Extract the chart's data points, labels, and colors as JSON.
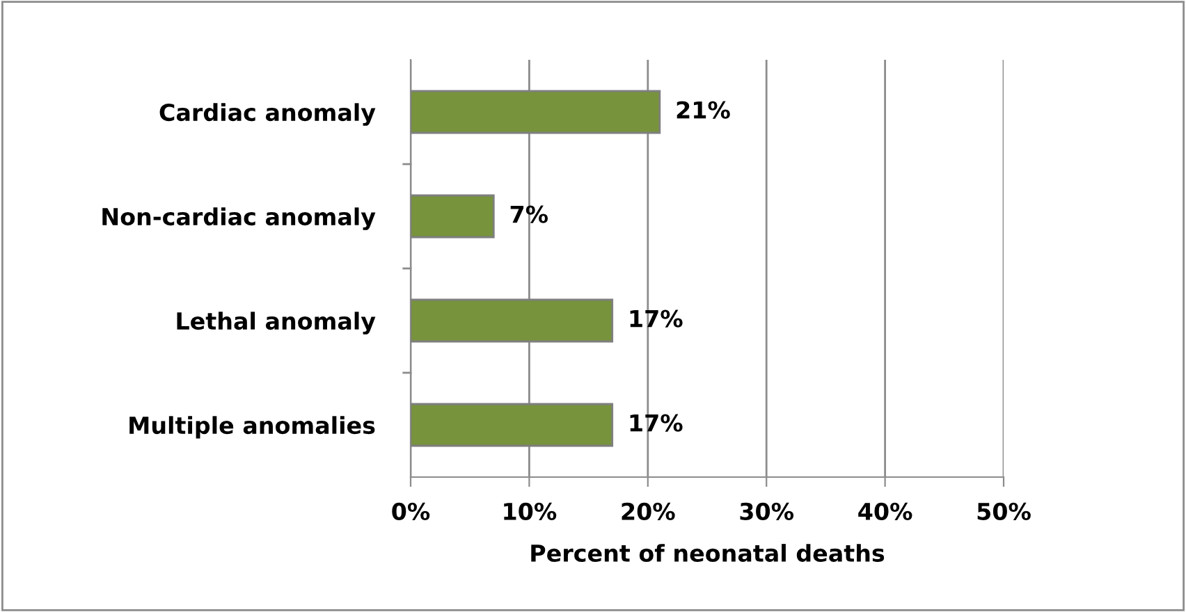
{
  "chart_data": {
    "type": "bar",
    "orientation": "horizontal",
    "xlabel": "Percent of neonatal deaths",
    "categories": [
      "Cardiac anomaly",
      "Non-cardiac anomaly",
      "Lethal anomaly",
      "Multiple anomalies"
    ],
    "values": [
      21,
      7,
      17,
      17
    ],
    "value_labels": [
      "21%",
      "7%",
      "17%",
      "17%"
    ],
    "color": "#77933c",
    "xlim": [
      0,
      50
    ],
    "xticks": [
      {
        "value": 0,
        "label": "0%"
      },
      {
        "value": 10,
        "label": "10%"
      },
      {
        "value": 20,
        "label": "20%"
      },
      {
        "value": 30,
        "label": "30%"
      },
      {
        "value": 40,
        "label": "40%"
      },
      {
        "value": 50,
        "label": "50%"
      }
    ],
    "grid": "x",
    "legend": false
  }
}
